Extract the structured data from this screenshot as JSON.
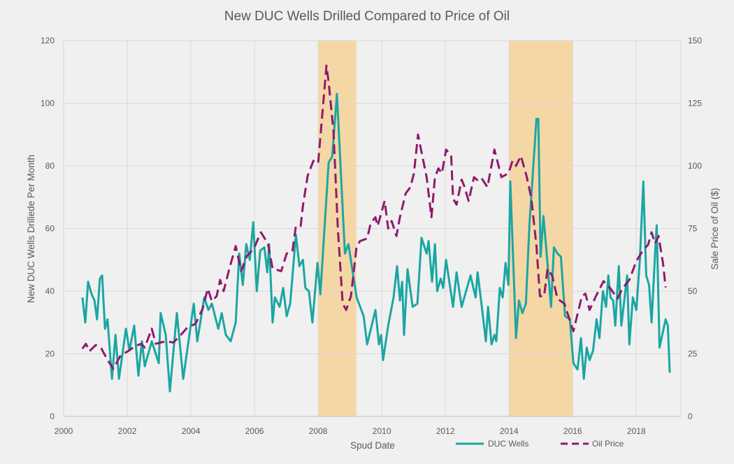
{
  "chart_data": {
    "type": "line",
    "title": "New DUC Wells Drilled Compared to Price of Oil",
    "xlabel": "Spud Date",
    "ylabel": "New DUC Wells Drillede Per Month",
    "y2label": "Sale Price of Oil ($)",
    "xlim": [
      2000,
      2019.4
    ],
    "ylim": [
      0,
      120
    ],
    "y2lim": [
      0,
      150
    ],
    "xticks": [
      "2000",
      "2002",
      "2004",
      "2006",
      "2008",
      "2010",
      "2012",
      "2014",
      "2016",
      "2018"
    ],
    "xtick_values": [
      2000,
      2002,
      2004,
      2006,
      2008,
      2010,
      2012,
      2014,
      2016,
      2018
    ],
    "yticks": [
      "0",
      "20",
      "40",
      "60",
      "80",
      "100",
      "120"
    ],
    "ytick_values": [
      0,
      20,
      40,
      60,
      80,
      100,
      120
    ],
    "y2ticks": [
      "0",
      "25",
      "50",
      "75",
      "100",
      "125",
      "150"
    ],
    "y2tick_values": [
      0,
      25,
      50,
      75,
      100,
      125,
      150
    ],
    "grid": true,
    "legend_position": "bottom-right",
    "shaded_periods": [
      [
        2008.0,
        2009.2
      ],
      [
        2014.0,
        2016.0
      ]
    ],
    "series": [
      {
        "name": "DUC Wells",
        "axis": "left",
        "style": "solid",
        "color": "#1ba6a3",
        "points": [
          [
            2000.59,
            38
          ],
          [
            2000.68,
            30
          ],
          [
            2000.77,
            43
          ],
          [
            2000.88,
            39
          ],
          [
            2000.97,
            37
          ],
          [
            2001.05,
            31
          ],
          [
            2001.14,
            44
          ],
          [
            2001.21,
            45
          ],
          [
            2001.3,
            28
          ],
          [
            2001.38,
            31
          ],
          [
            2001.52,
            12
          ],
          [
            2001.63,
            26
          ],
          [
            2001.74,
            12
          ],
          [
            2001.96,
            28
          ],
          [
            2002.07,
            21
          ],
          [
            2002.22,
            29
          ],
          [
            2002.35,
            13
          ],
          [
            2002.46,
            24
          ],
          [
            2002.55,
            16
          ],
          [
            2002.77,
            24
          ],
          [
            2002.99,
            17
          ],
          [
            2003.05,
            33
          ],
          [
            2003.21,
            26
          ],
          [
            2003.34,
            8
          ],
          [
            2003.56,
            33
          ],
          [
            2003.76,
            12
          ],
          [
            2004.09,
            36
          ],
          [
            2004.2,
            24
          ],
          [
            2004.42,
            38
          ],
          [
            2004.55,
            34
          ],
          [
            2004.66,
            36
          ],
          [
            2004.86,
            28
          ],
          [
            2004.97,
            33
          ],
          [
            2005.1,
            26
          ],
          [
            2005.25,
            24
          ],
          [
            2005.41,
            30
          ],
          [
            2005.52,
            52
          ],
          [
            2005.63,
            42
          ],
          [
            2005.74,
            55
          ],
          [
            2005.85,
            50
          ],
          [
            2005.96,
            62
          ],
          [
            2006.07,
            40
          ],
          [
            2006.18,
            53
          ],
          [
            2006.31,
            54
          ],
          [
            2006.4,
            46
          ],
          [
            2006.46,
            55
          ],
          [
            2006.57,
            30
          ],
          [
            2006.64,
            38
          ],
          [
            2006.79,
            35
          ],
          [
            2006.9,
            41
          ],
          [
            2007.01,
            32
          ],
          [
            2007.12,
            36
          ],
          [
            2007.3,
            58
          ],
          [
            2007.41,
            48
          ],
          [
            2007.52,
            50
          ],
          [
            2007.6,
            41
          ],
          [
            2007.71,
            40
          ],
          [
            2007.82,
            30
          ],
          [
            2007.98,
            49
          ],
          [
            2008.07,
            39
          ],
          [
            2008.33,
            81
          ],
          [
            2008.44,
            83
          ],
          [
            2008.59,
            103
          ],
          [
            2008.84,
            52
          ],
          [
            2008.95,
            55
          ],
          [
            2009.21,
            38
          ],
          [
            2009.43,
            32
          ],
          [
            2009.54,
            23
          ],
          [
            2009.8,
            34
          ],
          [
            2009.91,
            23
          ],
          [
            2009.98,
            26
          ],
          [
            2010.04,
            18
          ],
          [
            2010.2,
            29
          ],
          [
            2010.37,
            38
          ],
          [
            2010.48,
            48
          ],
          [
            2010.57,
            37
          ],
          [
            2010.64,
            43
          ],
          [
            2010.7,
            26
          ],
          [
            2010.81,
            47
          ],
          [
            2010.97,
            35
          ],
          [
            2011.12,
            36
          ],
          [
            2011.25,
            57
          ],
          [
            2011.41,
            52
          ],
          [
            2011.47,
            56
          ],
          [
            2011.58,
            43
          ],
          [
            2011.67,
            55
          ],
          [
            2011.74,
            40
          ],
          [
            2011.85,
            44
          ],
          [
            2011.93,
            41
          ],
          [
            2012.02,
            50
          ],
          [
            2012.24,
            35
          ],
          [
            2012.35,
            46
          ],
          [
            2012.51,
            35
          ],
          [
            2012.79,
            45
          ],
          [
            2012.95,
            38
          ],
          [
            2013.01,
            46
          ],
          [
            2013.12,
            37
          ],
          [
            2013.27,
            24
          ],
          [
            2013.34,
            35
          ],
          [
            2013.45,
            23
          ],
          [
            2013.54,
            26
          ],
          [
            2013.6,
            24
          ],
          [
            2013.71,
            41
          ],
          [
            2013.8,
            38
          ],
          [
            2013.89,
            49
          ],
          [
            2013.98,
            42
          ],
          [
            2014.04,
            75
          ],
          [
            2014.22,
            25
          ],
          [
            2014.31,
            37
          ],
          [
            2014.42,
            33
          ],
          [
            2014.53,
            36
          ],
          [
            2014.64,
            61
          ],
          [
            2014.86,
            95
          ],
          [
            2014.92,
            95
          ],
          [
            2014.99,
            51
          ],
          [
            2015.08,
            64
          ],
          [
            2015.19,
            51
          ],
          [
            2015.32,
            35
          ],
          [
            2015.41,
            54
          ],
          [
            2015.52,
            52
          ],
          [
            2015.63,
            51
          ],
          [
            2015.76,
            32
          ],
          [
            2015.91,
            31
          ],
          [
            2016.02,
            17
          ],
          [
            2016.15,
            15
          ],
          [
            2016.26,
            25
          ],
          [
            2016.35,
            12
          ],
          [
            2016.44,
            22
          ],
          [
            2016.53,
            18
          ],
          [
            2016.64,
            21
          ],
          [
            2016.75,
            31
          ],
          [
            2016.84,
            25
          ],
          [
            2016.95,
            40
          ],
          [
            2017.05,
            35
          ],
          [
            2017.12,
            45
          ],
          [
            2017.19,
            38
          ],
          [
            2017.27,
            37
          ],
          [
            2017.34,
            29
          ],
          [
            2017.45,
            48
          ],
          [
            2017.53,
            29
          ],
          [
            2017.71,
            45
          ],
          [
            2017.78,
            23
          ],
          [
            2017.89,
            38
          ],
          [
            2018.0,
            34
          ],
          [
            2018.11,
            50
          ],
          [
            2018.22,
            75
          ],
          [
            2018.31,
            45
          ],
          [
            2018.4,
            42
          ],
          [
            2018.48,
            30
          ],
          [
            2018.59,
            52
          ],
          [
            2018.64,
            61
          ],
          [
            2018.73,
            22
          ],
          [
            2018.92,
            31
          ],
          [
            2018.99,
            29
          ],
          [
            2019.05,
            14
          ]
        ]
      },
      {
        "name": "Oil Price",
        "axis": "right",
        "style": "dashed",
        "color": "#8f1a6c",
        "points": [
          [
            2000.59,
            27
          ],
          [
            2000.7,
            29
          ],
          [
            2000.81,
            26
          ],
          [
            2001.01,
            28.5
          ],
          [
            2001.19,
            27
          ],
          [
            2001.36,
            23
          ],
          [
            2001.56,
            19
          ],
          [
            2001.8,
            24.5
          ],
          [
            2002.02,
            26
          ],
          [
            2002.24,
            28
          ],
          [
            2002.44,
            29
          ],
          [
            2002.55,
            27.5
          ],
          [
            2002.77,
            35
          ],
          [
            2002.9,
            29
          ],
          [
            2003.21,
            30
          ],
          [
            2003.45,
            29.5
          ],
          [
            2003.65,
            32
          ],
          [
            2003.89,
            35.5
          ],
          [
            2004.15,
            37
          ],
          [
            2004.37,
            43
          ],
          [
            2004.53,
            51
          ],
          [
            2004.66,
            46
          ],
          [
            2004.81,
            48
          ],
          [
            2004.92,
            54.5
          ],
          [
            2005.03,
            50
          ],
          [
            2005.21,
            59
          ],
          [
            2005.41,
            68
          ],
          [
            2005.58,
            58
          ],
          [
            2005.76,
            64
          ],
          [
            2005.98,
            67
          ],
          [
            2006.2,
            73.5
          ],
          [
            2006.42,
            69
          ],
          [
            2006.57,
            59
          ],
          [
            2006.84,
            58
          ],
          [
            2007.01,
            65
          ],
          [
            2007.19,
            66
          ],
          [
            2007.3,
            76
          ],
          [
            2007.45,
            76
          ],
          [
            2007.52,
            84
          ],
          [
            2007.67,
            96
          ],
          [
            2007.85,
            102
          ],
          [
            2008.0,
            101
          ],
          [
            2008.26,
            140
          ],
          [
            2008.33,
            133.5
          ],
          [
            2008.48,
            114
          ],
          [
            2008.62,
            75
          ],
          [
            2008.77,
            45
          ],
          [
            2008.88,
            42.5
          ],
          [
            2009.03,
            48
          ],
          [
            2009.21,
            68
          ],
          [
            2009.32,
            70
          ],
          [
            2009.54,
            71
          ],
          [
            2009.65,
            77
          ],
          [
            2009.8,
            79.5
          ],
          [
            2009.87,
            76
          ],
          [
            2010.09,
            86
          ],
          [
            2010.2,
            75
          ],
          [
            2010.31,
            78
          ],
          [
            2010.46,
            72
          ],
          [
            2010.57,
            79.5
          ],
          [
            2010.75,
            89
          ],
          [
            2010.9,
            91.5
          ],
          [
            2011.01,
            97
          ],
          [
            2011.14,
            112.5
          ],
          [
            2011.25,
            105.5
          ],
          [
            2011.41,
            95.5
          ],
          [
            2011.56,
            79.5
          ],
          [
            2011.67,
            95.5
          ],
          [
            2011.78,
            99
          ],
          [
            2011.89,
            97
          ],
          [
            2012.02,
            106.5
          ],
          [
            2012.18,
            104
          ],
          [
            2012.24,
            87
          ],
          [
            2012.35,
            84.5
          ],
          [
            2012.51,
            94.5
          ],
          [
            2012.59,
            92
          ],
          [
            2012.73,
            86
          ],
          [
            2012.9,
            95.5
          ],
          [
            2013.03,
            94
          ],
          [
            2013.14,
            95
          ],
          [
            2013.32,
            91.5
          ],
          [
            2013.54,
            106.5
          ],
          [
            2013.76,
            95.5
          ],
          [
            2013.98,
            97
          ],
          [
            2014.11,
            102
          ],
          [
            2014.22,
            100
          ],
          [
            2014.37,
            104
          ],
          [
            2014.55,
            96
          ],
          [
            2014.7,
            87
          ],
          [
            2014.86,
            68
          ],
          [
            2014.97,
            48
          ],
          [
            2015.1,
            48
          ],
          [
            2015.21,
            59
          ],
          [
            2015.36,
            56
          ],
          [
            2015.52,
            47
          ],
          [
            2015.74,
            45
          ],
          [
            2016.02,
            34
          ],
          [
            2016.29,
            48
          ],
          [
            2016.4,
            49
          ],
          [
            2016.53,
            42.5
          ],
          [
            2016.73,
            48
          ],
          [
            2016.97,
            54
          ],
          [
            2017.19,
            51
          ],
          [
            2017.41,
            47
          ],
          [
            2017.56,
            51
          ],
          [
            2017.78,
            54.5
          ],
          [
            2018.0,
            62
          ],
          [
            2018.22,
            66.5
          ],
          [
            2018.37,
            68.5
          ],
          [
            2018.48,
            73.5
          ],
          [
            2018.59,
            69
          ],
          [
            2018.7,
            72
          ],
          [
            2018.84,
            61
          ],
          [
            2018.92,
            51.5
          ]
        ]
      }
    ],
    "shade_color": "#f5d7a6",
    "grid_color": "#d9d9d9"
  }
}
